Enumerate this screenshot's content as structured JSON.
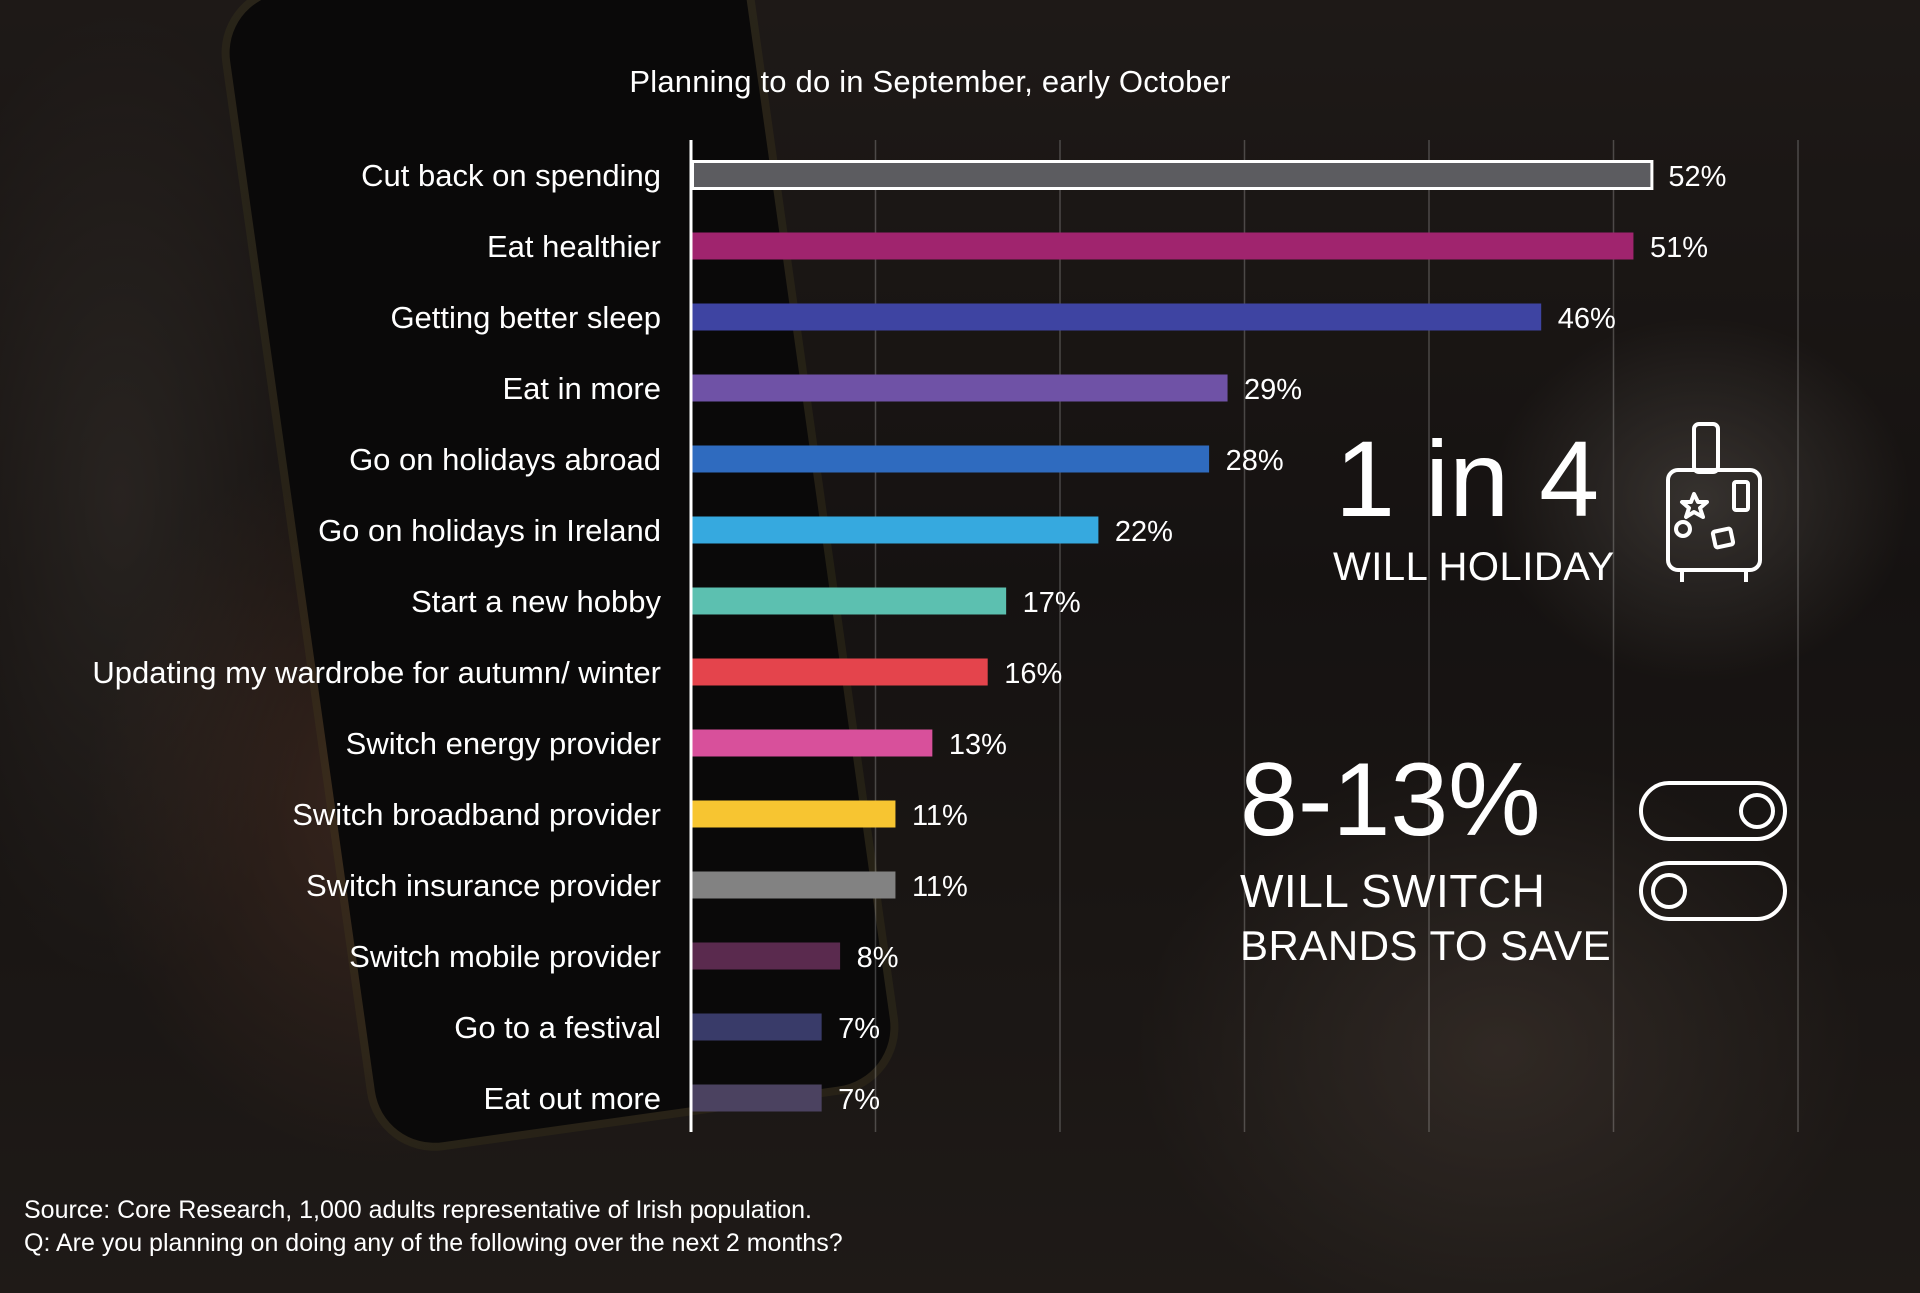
{
  "chart_data": {
    "type": "bar",
    "orientation": "horizontal",
    "title": "Planning to do in September, early October",
    "categories": [
      "Cut back on spending",
      "Eat healthier",
      "Getting better sleep",
      "Eat in more",
      "Go on holidays abroad",
      "Go on holidays in Ireland",
      "Start a new hobby",
      "Updating my wardrobe for autumn/ winter",
      "Switch energy provider",
      "Switch broadband provider",
      "Switch insurance provider",
      "Switch mobile provider",
      "Go to a festival",
      "Eat out more"
    ],
    "values": [
      52,
      51,
      46,
      29,
      28,
      22,
      17,
      16,
      13,
      11,
      11,
      8,
      7,
      7
    ],
    "value_labels": [
      "52%",
      "51%",
      "46%",
      "29%",
      "28%",
      "22%",
      "17%",
      "16%",
      "13%",
      "11%",
      "11%",
      "8%",
      "7%",
      "7%"
    ],
    "colors": [
      "#5c5c60",
      "#a0246e",
      "#3e44a2",
      "#6f52a6",
      "#2f6bbf",
      "#36a9df",
      "#5cc0b0",
      "#e4444c",
      "#d8509b",
      "#f7c531",
      "#828282",
      "#5a2a4e",
      "#393b69",
      "#4b4260"
    ],
    "first_bar_outline": "#ffffff",
    "xlim": [
      0,
      60
    ],
    "grid": true,
    "xlabel": "",
    "ylabel": ""
  },
  "stats": {
    "holiday": {
      "value": "1 in 4",
      "label": "WILL HOLIDAY",
      "icon": "suitcase-icon"
    },
    "switch": {
      "value": "8-13%",
      "label_line1": "WILL SWITCH",
      "label_line2": "BRANDS TO SAVE",
      "icon": "toggle-switch-icon"
    }
  },
  "footer": {
    "source": "Source: Core Research, 1,000 adults representative of Irish population.",
    "question": "Q: Are you planning on doing any of the following over the next 2 months?"
  }
}
